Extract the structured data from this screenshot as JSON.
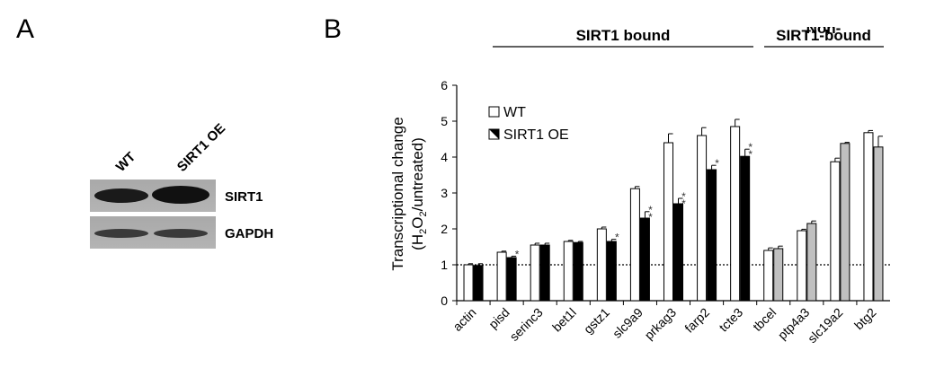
{
  "panels": {
    "a_letter": "A",
    "b_letter": "B"
  },
  "blot": {
    "lanes": [
      "WT",
      "SIRT1 OE"
    ],
    "bands": [
      "SIRT1",
      "GAPDH"
    ]
  },
  "chart_data": {
    "type": "bar",
    "ylabel_line1": "Transcriptional change",
    "ylabel_line2_pre": "(H",
    "ylabel_sub1": "2",
    "ylabel_mid": "O",
    "ylabel_sub2": "2",
    "ylabel_post": "/untreated)",
    "ylim": [
      0,
      6
    ],
    "yticks": [
      "0",
      "1",
      "2",
      "3",
      "4",
      "5",
      "6"
    ],
    "reference_line": 1,
    "groups": [
      {
        "label": "SIRT1 bound",
        "genes": [
          "actin",
          "pisd",
          "serinc3",
          "bet1l",
          "gstz1",
          "slc9a9",
          "prkag3",
          "farp2",
          "tcte3"
        ]
      },
      {
        "label_line1": "Non-",
        "label_line2": "SIRT1-bound",
        "genes": [
          "tbcel",
          "ptp4a3",
          "slc19a2",
          "btg2"
        ]
      }
    ],
    "categories": [
      "actin",
      "pisd",
      "serinc3",
      "bet1l",
      "gstz1",
      "slc9a9",
      "prkag3",
      "farp2",
      "tcte3",
      "tbcel",
      "ptp4a3",
      "slc19a2",
      "btg2"
    ],
    "series": [
      {
        "name": "WT",
        "color": "#ffffff",
        "values": [
          1.0,
          1.35,
          1.55,
          1.65,
          2.0,
          3.12,
          4.4,
          4.6,
          4.85,
          1.4,
          1.95,
          3.87,
          4.68
        ],
        "errors": [
          0.03,
          0.03,
          0.05,
          0.03,
          0.05,
          0.06,
          0.25,
          0.22,
          0.2,
          0.07,
          0.04,
          0.1,
          0.06
        ]
      },
      {
        "name": "SIRT1 OE",
        "color_bound": "#000000",
        "color_unbound": "#c0c0c0",
        "values": [
          0.98,
          1.2,
          1.55,
          1.62,
          1.65,
          2.3,
          2.7,
          3.65,
          4.02,
          1.45,
          2.15,
          4.38,
          4.28
        ],
        "errors": [
          0.05,
          0.04,
          0.05,
          0.03,
          0.06,
          0.18,
          0.15,
          0.12,
          0.2,
          0.07,
          0.07,
          0.03,
          0.3
        ]
      }
    ],
    "significance": [
      "",
      "*",
      "",
      "",
      "*",
      "**",
      "**",
      "*",
      "**",
      "",
      "",
      "",
      ""
    ],
    "legend_position": "top-left"
  }
}
